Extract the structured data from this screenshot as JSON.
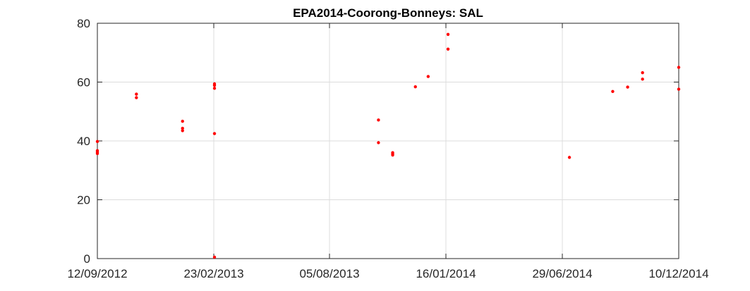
{
  "chart_data": {
    "type": "scatter",
    "title": "EPA2014-Coorong-Bonneys: SAL",
    "xlabel": "",
    "ylabel": "",
    "x_tick_labels": [
      "12/09/2012",
      "23/02/2013",
      "05/08/2013",
      "16/01/2014",
      "29/06/2014",
      "10/12/2014"
    ],
    "x_ticks": [
      "2012-09-12",
      "2013-02-23",
      "2013-08-05",
      "2014-01-16",
      "2014-06-29",
      "2014-12-10"
    ],
    "xlim": [
      "2012-09-12",
      "2014-12-10"
    ],
    "y_ticks": [
      0,
      20,
      40,
      60,
      80
    ],
    "ylim": [
      0,
      80
    ],
    "grid": true,
    "marker_color": "#ff0000",
    "series": [
      {
        "x": [
          "2012-09-12",
          "2012-09-12",
          "2012-09-12",
          "2012-09-12",
          "2012-11-06",
          "2012-11-06",
          "2013-01-10",
          "2013-01-10",
          "2013-01-10",
          "2013-02-24",
          "2013-02-24",
          "2013-02-24",
          "2013-02-24",
          "2013-02-24",
          "2013-10-13",
          "2013-10-13",
          "2013-11-02",
          "2013-11-02",
          "2013-11-02",
          "2013-12-04",
          "2013-12-22",
          "2014-01-19",
          "2014-01-19",
          "2014-07-09",
          "2014-09-08",
          "2014-09-29",
          "2014-10-20",
          "2014-10-20",
          "2014-12-10",
          "2014-12-10"
        ],
        "y": [
          39.8,
          36.7,
          36.2,
          35.7,
          55.9,
          54.7,
          46.7,
          44.3,
          43.5,
          59.4,
          58.9,
          57.9,
          42.5,
          0.5,
          47.1,
          39.4,
          36.0,
          35.6,
          35.2,
          58.4,
          61.9,
          76.2,
          71.2,
          34.4,
          56.8,
          58.3,
          63.2,
          61.0,
          65.0,
          57.6
        ]
      }
    ]
  }
}
